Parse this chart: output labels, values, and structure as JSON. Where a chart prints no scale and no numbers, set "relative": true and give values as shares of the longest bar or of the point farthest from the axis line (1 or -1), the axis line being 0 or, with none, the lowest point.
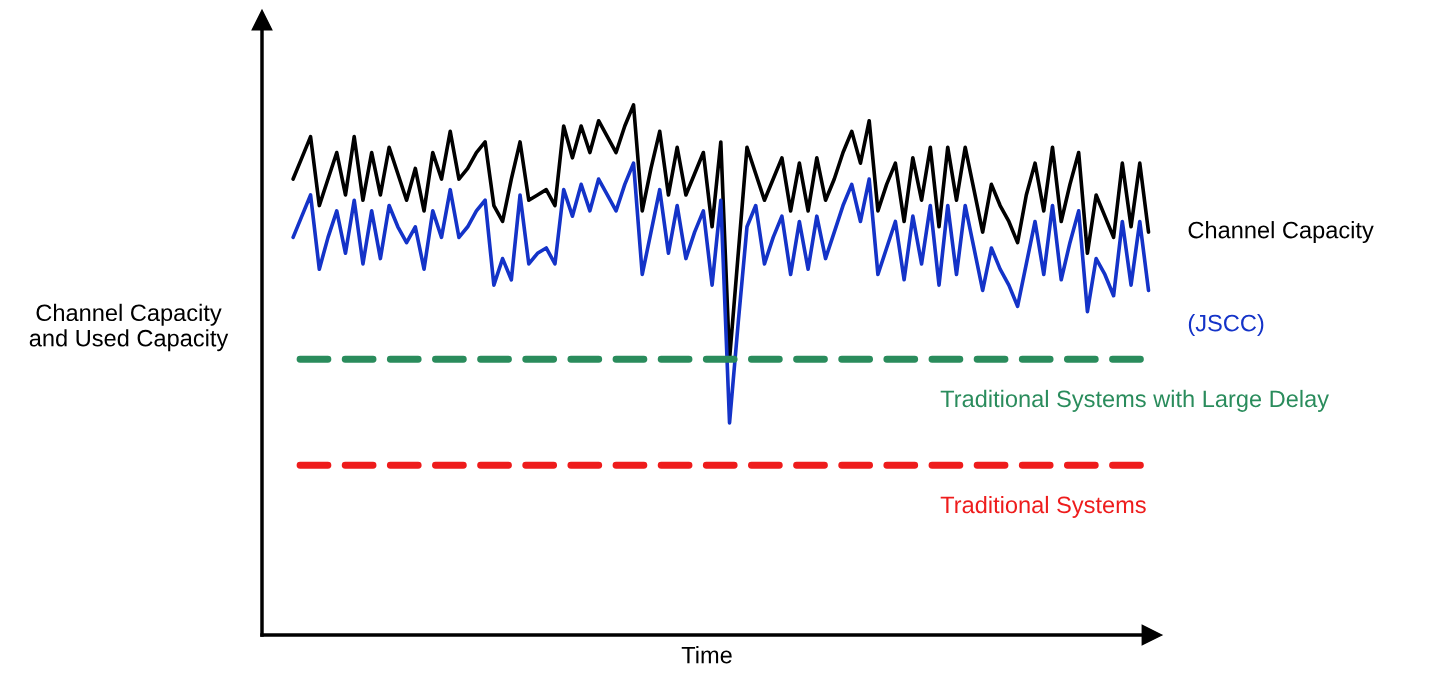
{
  "chart_data": {
    "type": "line",
    "relative": true,
    "xlabel": "Time",
    "ylabel": "Channel Capacity\nand Used Capacity",
    "tick_labels": false,
    "legend": false,
    "marker": "none",
    "line_style": "solid",
    "categories": [
      null,
      null,
      null,
      null,
      null,
      null,
      null,
      null,
      null,
      null,
      null,
      null,
      null,
      null,
      null,
      null,
      null,
      null,
      null,
      null,
      null,
      null,
      null,
      null,
      null,
      null,
      null,
      null,
      null,
      null,
      null,
      null,
      null,
      null,
      null,
      null,
      null,
      null,
      null,
      null,
      null,
      null,
      null,
      null,
      null,
      null,
      null,
      null,
      null,
      null,
      null,
      null,
      null,
      null,
      null,
      null,
      null,
      null,
      null,
      null,
      null,
      null,
      null,
      null,
      null,
      null,
      null,
      null,
      null,
      null,
      null,
      null,
      null,
      null,
      null,
      null,
      null,
      null,
      null,
      null,
      null,
      null,
      null,
      null,
      null,
      null,
      null,
      null,
      null,
      null,
      null,
      null,
      null,
      null,
      null,
      null,
      null,
      null,
      null
    ],
    "series": [
      {
        "name": "Channel Capacity",
        "color": "#000000",
        "values": [
          0.86,
          0.9,
          0.94,
          0.81,
          0.86,
          0.91,
          0.83,
          0.94,
          0.82,
          0.91,
          0.83,
          0.92,
          0.87,
          0.82,
          0.88,
          0.8,
          0.91,
          0.86,
          0.95,
          0.86,
          0.88,
          0.91,
          0.93,
          0.81,
          0.78,
          0.86,
          0.93,
          0.82,
          0.83,
          0.84,
          0.81,
          0.96,
          0.9,
          0.96,
          0.91,
          0.97,
          0.94,
          0.91,
          0.96,
          1.0,
          0.8,
          0.88,
          0.95,
          0.83,
          0.92,
          0.83,
          0.87,
          0.91,
          0.77,
          0.93,
          0.52,
          0.72,
          0.92,
          0.87,
          0.82,
          0.86,
          0.9,
          0.8,
          0.89,
          0.8,
          0.9,
          0.82,
          0.86,
          0.91,
          0.95,
          0.89,
          0.97,
          0.8,
          0.85,
          0.89,
          0.78,
          0.9,
          0.82,
          0.92,
          0.77,
          0.92,
          0.82,
          0.92,
          0.84,
          0.76,
          0.85,
          0.81,
          0.78,
          0.74,
          0.83,
          0.89,
          0.8,
          0.92,
          0.78,
          0.85,
          0.91,
          0.72,
          0.83,
          0.79,
          0.75,
          0.89,
          0.77,
          0.89,
          0.76
        ]
      },
      {
        "name": "(JSCC)",
        "color": "#1433c8",
        "values": [
          0.75,
          0.79,
          0.83,
          0.69,
          0.75,
          0.8,
          0.72,
          0.82,
          0.7,
          0.8,
          0.71,
          0.81,
          0.77,
          0.74,
          0.77,
          0.69,
          0.8,
          0.75,
          0.84,
          0.75,
          0.77,
          0.8,
          0.82,
          0.66,
          0.71,
          0.67,
          0.83,
          0.7,
          0.72,
          0.73,
          0.7,
          0.84,
          0.79,
          0.85,
          0.8,
          0.86,
          0.83,
          0.8,
          0.85,
          0.89,
          0.68,
          0.76,
          0.84,
          0.72,
          0.81,
          0.71,
          0.76,
          0.8,
          0.66,
          0.82,
          0.4,
          0.59,
          0.77,
          0.81,
          0.7,
          0.75,
          0.79,
          0.68,
          0.78,
          0.69,
          0.79,
          0.71,
          0.76,
          0.81,
          0.85,
          0.78,
          0.86,
          0.68,
          0.73,
          0.78,
          0.67,
          0.79,
          0.7,
          0.81,
          0.66,
          0.81,
          0.68,
          0.81,
          0.73,
          0.65,
          0.73,
          0.69,
          0.66,
          0.62,
          0.7,
          0.78,
          0.68,
          0.81,
          0.67,
          0.74,
          0.8,
          0.61,
          0.71,
          0.68,
          0.64,
          0.78,
          0.66,
          0.78,
          0.65
        ]
      }
    ],
    "ref_lines": [
      {
        "axis": "y",
        "value": 0.52,
        "label": "Traditional Systems with Large Delay",
        "color": "#2a8c5c",
        "line_style": "dashed"
      },
      {
        "axis": "y",
        "value": 0.32,
        "label": "Traditional Systems",
        "color": "#ee1c1c",
        "line_style": "dashed"
      }
    ]
  }
}
